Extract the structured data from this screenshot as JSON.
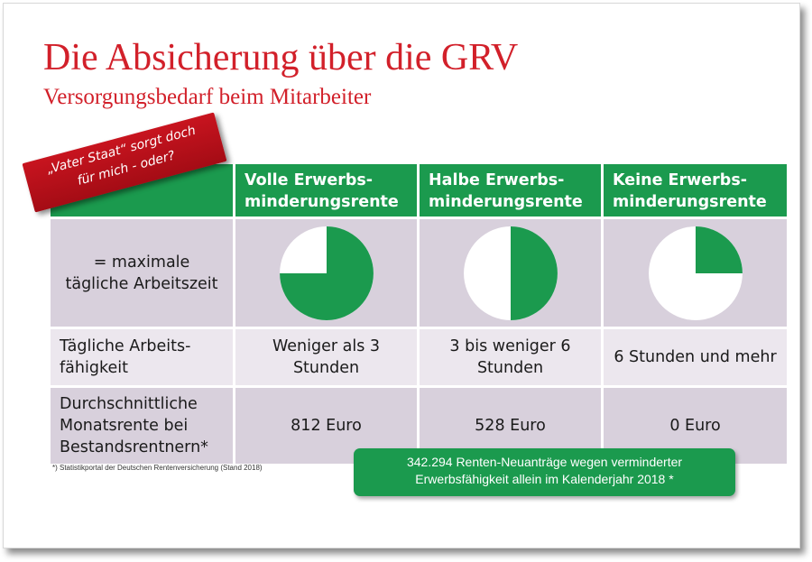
{
  "title": "Die Absicherung über die GRV",
  "subtitle": "Versorgungsbedarf beim Mitarbeiter",
  "ribbon": {
    "line1": "„Vater Staat“ sorgt doch",
    "line2": "für mich - oder?"
  },
  "table": {
    "columns": [
      {
        "line1": "Volle Erwerbs-",
        "line2": "minderungsrente"
      },
      {
        "line1": "Halbe Erwerbs-",
        "line2": "minderungsrente"
      },
      {
        "line1": "Keine Erwerbs-",
        "line2": "minderungsrente"
      }
    ],
    "rows": [
      {
        "label_lines": [
          "= maximale",
          "tägliche Arbeitszeit"
        ],
        "pies": [
          0.75,
          0.5,
          0.25
        ]
      },
      {
        "label_lines": [
          "Tägliche Arbeits-",
          "fähigkeit"
        ],
        "cells": [
          [
            "Weniger als 3",
            "Stunden"
          ],
          [
            "3 bis weniger 6",
            "Stunden"
          ],
          [
            "6 Stunden und mehr"
          ]
        ]
      },
      {
        "label_lines": [
          "Durchschnittliche",
          "Monatsrente bei",
          "Bestandsrentnern*"
        ],
        "cells": [
          [
            "812 Euro"
          ],
          [
            "528 Euro"
          ],
          [
            "0 Euro"
          ]
        ]
      }
    ]
  },
  "footnote": "*) Statistikportal der Deutschen Rentenversicherung (Stand 2018)",
  "callout": {
    "line1": "342.294 Renten-Neuanträge wegen verminderter",
    "line2": "Erwerbsfähigkeit allein im Kalenderjahr 2018 *"
  },
  "colors": {
    "title": "#d2202a",
    "header_green": "#1b9a4e",
    "pie_green": "#1b9a4e",
    "row_dark": "#d8d0dc",
    "row_light": "#ece7ee",
    "ribbon_red": "#c8141f"
  }
}
